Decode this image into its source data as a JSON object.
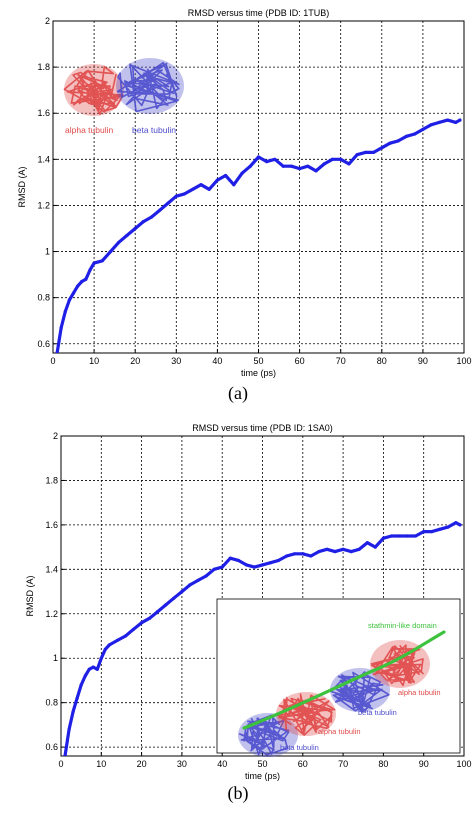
{
  "figure": {
    "caption_a": "(a)",
    "caption_b": "(b)"
  },
  "colors": {
    "series": "#1f1fe6",
    "alpha_tubulin": "#e04848",
    "beta_tubulin": "#4c4ccc",
    "stathmin": "#3cc23c",
    "axis": "#000000",
    "grid": "#000000"
  },
  "chart_data": [
    {
      "type": "line",
      "title": "RMSD versus time (PDB ID: 1TUB)",
      "xlabel": "time (ps)",
      "ylabel": "RMSD (A)",
      "xlim": [
        0,
        100
      ],
      "ylim": [
        0.56,
        2.0
      ],
      "xticks": [
        "0",
        "10",
        "20",
        "30",
        "40",
        "50",
        "60",
        "70",
        "80",
        "90",
        "100"
      ],
      "yticks": [
        "0.6",
        "0.8",
        "1",
        "1.2",
        "1.4",
        "1.6",
        "1.8",
        "2"
      ],
      "grid": true,
      "inset": {
        "position": "top-left",
        "labels": [
          "alpha tubulin",
          "beta tubulin"
        ]
      },
      "series": [
        {
          "x": [
            1,
            2,
            3,
            4,
            5,
            6,
            7,
            8,
            9,
            10,
            12,
            14,
            16,
            18,
            20,
            22,
            24,
            26,
            28,
            30,
            32,
            34,
            36,
            38,
            40,
            42,
            44,
            46,
            48,
            50,
            52,
            54,
            56,
            58,
            60,
            62,
            64,
            66,
            68,
            70,
            72,
            74,
            76,
            78,
            80,
            82,
            84,
            86,
            88,
            90,
            92,
            94,
            96,
            98,
            99
          ],
          "y": [
            0.56,
            0.67,
            0.74,
            0.79,
            0.82,
            0.85,
            0.87,
            0.88,
            0.92,
            0.95,
            0.96,
            1.0,
            1.04,
            1.07,
            1.1,
            1.13,
            1.15,
            1.18,
            1.21,
            1.24,
            1.25,
            1.27,
            1.29,
            1.27,
            1.31,
            1.33,
            1.29,
            1.34,
            1.37,
            1.41,
            1.39,
            1.4,
            1.37,
            1.37,
            1.36,
            1.37,
            1.35,
            1.38,
            1.4,
            1.4,
            1.38,
            1.42,
            1.43,
            1.43,
            1.45,
            1.47,
            1.48,
            1.5,
            1.51,
            1.53,
            1.55,
            1.56,
            1.57,
            1.56,
            1.57
          ]
        }
      ]
    },
    {
      "type": "line",
      "title": "RMSD versus time (PDB ID: 1SA0)",
      "xlabel": "time (ps)",
      "ylabel": "RMSD (A)",
      "xlim": [
        0,
        100
      ],
      "ylim": [
        0.56,
        2.0
      ],
      "xticks": [
        "0",
        "10",
        "20",
        "30",
        "40",
        "50",
        "60",
        "70",
        "80",
        "90",
        "100"
      ],
      "yticks": [
        "0.6",
        "0.8",
        "1",
        "1.2",
        "1.4",
        "1.6",
        "1.8",
        "2"
      ],
      "grid": true,
      "inset": {
        "position": "bottom-right",
        "labels": [
          "stathmin-like domain",
          "alpha tubulin",
          "beta tubulin",
          "alpha tubulin",
          "beta tubulin"
        ]
      },
      "series": [
        {
          "x": [
            1,
            2,
            3,
            4,
            5,
            6,
            7,
            8,
            9,
            10,
            11,
            12,
            14,
            16,
            18,
            20,
            22,
            24,
            26,
            28,
            30,
            32,
            34,
            36,
            38,
            40,
            42,
            44,
            46,
            48,
            50,
            52,
            54,
            56,
            58,
            60,
            62,
            64,
            66,
            68,
            70,
            72,
            74,
            76,
            78,
            80,
            82,
            84,
            86,
            88,
            90,
            92,
            94,
            96,
            98,
            99
          ],
          "y": [
            0.56,
            0.68,
            0.76,
            0.82,
            0.88,
            0.92,
            0.95,
            0.96,
            0.95,
            1.0,
            1.04,
            1.06,
            1.08,
            1.1,
            1.13,
            1.16,
            1.18,
            1.21,
            1.24,
            1.27,
            1.3,
            1.33,
            1.35,
            1.37,
            1.4,
            1.41,
            1.45,
            1.44,
            1.42,
            1.41,
            1.42,
            1.43,
            1.44,
            1.46,
            1.47,
            1.47,
            1.46,
            1.48,
            1.49,
            1.48,
            1.49,
            1.48,
            1.49,
            1.52,
            1.5,
            1.54,
            1.55,
            1.55,
            1.55,
            1.55,
            1.57,
            1.57,
            1.58,
            1.59,
            1.61,
            1.6
          ]
        }
      ]
    }
  ]
}
